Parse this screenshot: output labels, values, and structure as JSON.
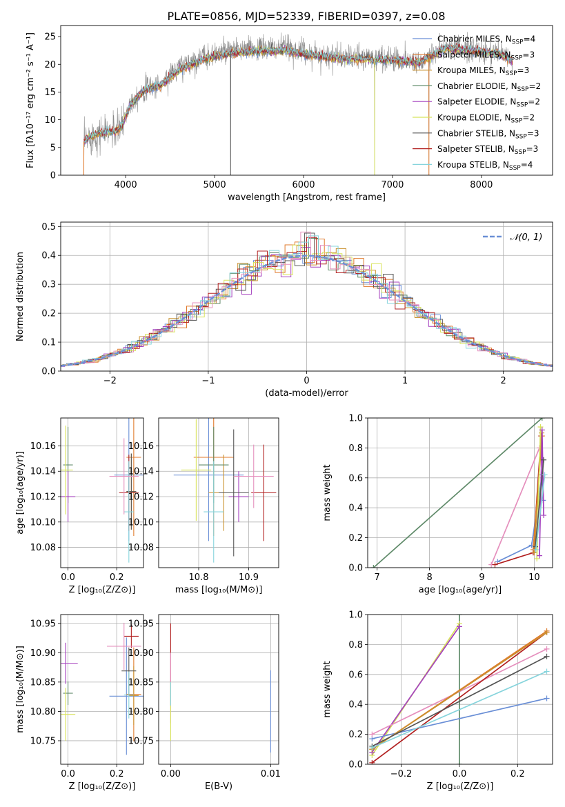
{
  "title": "PLATE=0856, MJD=52339, FIBERID=0397, z=0.08",
  "colors": {
    "chabrier_miles": "#6a8fd6",
    "salpeter_miles": "#e0792b",
    "kroupa_miles": "#c9912e",
    "chabrier_elodie": "#5f8a69",
    "salpeter_elodie": "#a43fbe",
    "kroupa_elodie": "#d8e35a",
    "chabrier_stelib": "#555555",
    "salpeter_stelib": "#b22020",
    "kroupa_stelib": "#86d4dc",
    "pink": "#e58fbd",
    "normal": "#6a8fd6",
    "grid": "#b0b0b0"
  },
  "chart_data": [
    {
      "id": "spectrum",
      "type": "line",
      "xlabel": "wavelength [Angstrom, rest frame]",
      "ylabel": "Flux [fλ10⁻¹⁷ erg cm⁻² s⁻¹ A⁻¹]",
      "xlim": [
        3270,
        8800
      ],
      "ylim": [
        0,
        27
      ],
      "xticks": [
        4000,
        5000,
        6000,
        7000,
        8000
      ],
      "yticks": [
        0,
        5,
        10,
        15,
        20,
        25
      ],
      "grid": false,
      "legend_position": "top-right",
      "series": [
        {
          "name": "Chabrier MILES, N_SSP=4",
          "color_key": "chabrier_miles"
        },
        {
          "name": "Salpeter MILES, N_SSP=3",
          "color_key": "salpeter_miles"
        },
        {
          "name": "Kroupa MILES, N_SSP=3",
          "color_key": "kroupa_miles"
        },
        {
          "name": "Chabrier ELODIE, N_SSP=2",
          "color_key": "chabrier_elodie"
        },
        {
          "name": "Salpeter ELODIE, N_SSP=2",
          "color_key": "salpeter_elodie"
        },
        {
          "name": "Kroupa ELODIE, N_SSP=2",
          "color_key": "kroupa_elodie"
        },
        {
          "name": "Chabrier STELIB, N_SSP=3",
          "color_key": "chabrier_stelib"
        },
        {
          "name": "Salpeter STELIB, N_SSP=3",
          "color_key": "salpeter_stelib"
        },
        {
          "name": "Kroupa STELIB, N_SSP=4",
          "color_key": "kroupa_stelib"
        }
      ],
      "continuum": [
        [
          3530,
          6.0
        ],
        [
          3600,
          7.0
        ],
        [
          3700,
          7.5
        ],
        [
          3800,
          7.8
        ],
        [
          3900,
          8.0
        ],
        [
          3960,
          9.0
        ],
        [
          4050,
          13.0
        ],
        [
          4200,
          15.5
        ],
        [
          4400,
          16.5
        ],
        [
          4600,
          19.5
        ],
        [
          4900,
          21.5
        ],
        [
          5200,
          22.5
        ],
        [
          5500,
          22.8
        ],
        [
          5800,
          23.0
        ],
        [
          6100,
          22.0
        ],
        [
          6400,
          21.3
        ],
        [
          6700,
          21.2
        ],
        [
          7000,
          21.0
        ],
        [
          7300,
          20.5
        ],
        [
          7600,
          23.0
        ],
        [
          7900,
          22.5
        ],
        [
          8200,
          22.0
        ],
        [
          8350,
          20.5
        ]
      ],
      "model_continuum": [
        [
          3530,
          6.0
        ],
        [
          3600,
          7.0
        ],
        [
          3700,
          7.5
        ],
        [
          3800,
          7.8
        ],
        [
          3900,
          8.0
        ],
        [
          3960,
          9.0
        ],
        [
          4050,
          12.6
        ],
        [
          4200,
          15.2
        ],
        [
          4400,
          16.2
        ],
        [
          4600,
          19.0
        ],
        [
          4900,
          21.0
        ],
        [
          5200,
          22.0
        ],
        [
          5500,
          22.4
        ],
        [
          5800,
          22.5
        ],
        [
          6100,
          21.6
        ],
        [
          6400,
          21.0
        ],
        [
          6700,
          20.9
        ],
        [
          7000,
          20.7
        ],
        [
          7300,
          20.3
        ],
        [
          7600,
          22.9
        ],
        [
          7900,
          22.4
        ],
        [
          8200,
          21.9
        ],
        [
          8350,
          20.6
        ]
      ],
      "dropouts": [
        [
          3530,
          0
        ],
        [
          5180,
          0
        ],
        [
          6800,
          0
        ],
        [
          7410,
          0
        ]
      ]
    },
    {
      "id": "residuals",
      "type": "histogram",
      "xlabel": "(data-model)/error",
      "ylabel": "Normed distribution",
      "xlim": [
        -2.5,
        2.5
      ],
      "ylim": [
        0,
        0.515
      ],
      "xticks": [
        -2,
        -1,
        0,
        1,
        2
      ],
      "yticks": [
        0.0,
        0.1,
        0.2,
        0.3,
        0.4,
        0.5
      ],
      "grid": true,
      "bin_width": 0.1,
      "legend_position": "top-right",
      "reference_curve": {
        "name": "𝒩(0, 1)",
        "mean": 0,
        "sigma": 1
      }
    },
    {
      "id": "age_vs_Z",
      "type": "scatter",
      "xlabel": "Z [log₁₀(Z/Z⊙)]",
      "ylabel": "age  [log₁₀(age/yr)]",
      "xlim": [
        -0.03,
        0.31
      ],
      "ylim": [
        10.064,
        10.182
      ],
      "xticks": [
        0.0,
        0.2
      ],
      "yticks": [
        10.08,
        10.1,
        10.12,
        10.14,
        10.16
      ],
      "grid": true,
      "points": [
        {
          "x": 0.25,
          "y": 10.137,
          "xerr": 0.06,
          "yerr": 0.052,
          "color_key": "chabrier_miles"
        },
        {
          "x": 0.27,
          "y": 10.151,
          "xerr": 0.03,
          "yerr": 0.062,
          "color_key": "salpeter_miles"
        },
        {
          "x": 0.26,
          "y": 10.124,
          "xerr": 0.02,
          "yerr": 0.03,
          "color_key": "kroupa_miles"
        },
        {
          "x": 0.0,
          "y": 10.145,
          "xerr": 0.02,
          "yerr": 0.03,
          "color_key": "chabrier_elodie"
        },
        {
          "x": 0.0,
          "y": 10.12,
          "xerr": 0.03,
          "yerr": 0.02,
          "color_key": "salpeter_elodie"
        },
        {
          "x": -0.01,
          "y": 10.141,
          "xerr": 0.03,
          "yerr": 0.035,
          "color_key": "kroupa_elodie"
        },
        {
          "x": 0.26,
          "y": 10.124,
          "xerr": 0.02,
          "yerr": 0.03,
          "color_key": "chabrier_stelib"
        },
        {
          "x": 0.25,
          "y": 10.123,
          "xerr": 0.04,
          "yerr": 0.03,
          "color_key": "salpeter_stelib"
        },
        {
          "x": 0.25,
          "y": 10.108,
          "xerr": 0.02,
          "yerr": 0.04,
          "color_key": "kroupa_stelib"
        },
        {
          "x": 0.23,
          "y": 10.136,
          "xerr": 0.06,
          "yerr": 0.03,
          "color_key": "pink"
        }
      ]
    },
    {
      "id": "age_vs_mass",
      "type": "scatter",
      "xlabel": "mass [log₁₀(M/M⊙)]",
      "ylabel": "",
      "xlim": [
        10.72,
        10.96
      ],
      "ylim": [
        10.064,
        10.182
      ],
      "xticks": [
        10.8,
        10.9
      ],
      "xtick_labels": [
        "10.8",
        "10.9"
      ],
      "yticks": [
        10.08,
        10.1,
        10.12,
        10.14,
        10.16
      ],
      "grid": true,
      "points": [
        {
          "x": 10.82,
          "y": 10.137,
          "xerr": 0.07,
          "yerr": 0.052,
          "color_key": "chabrier_miles"
        },
        {
          "x": 10.83,
          "y": 10.151,
          "xerr": 0.04,
          "yerr": 0.062,
          "color_key": "salpeter_miles"
        },
        {
          "x": 10.85,
          "y": 10.123,
          "xerr": 0.03,
          "yerr": 0.03,
          "color_key": "kroupa_miles"
        },
        {
          "x": 10.83,
          "y": 10.145,
          "xerr": 0.03,
          "yerr": 0.03,
          "color_key": "chabrier_elodie"
        },
        {
          "x": 10.88,
          "y": 10.12,
          "xerr": 0.02,
          "yerr": 0.02,
          "color_key": "salpeter_elodie"
        },
        {
          "x": 10.795,
          "y": 10.141,
          "xerr": 0.03,
          "yerr": 0.04,
          "color_key": "kroupa_elodie"
        },
        {
          "x": 10.87,
          "y": 10.123,
          "xerr": 0.03,
          "yerr": 0.05,
          "color_key": "chabrier_stelib"
        },
        {
          "x": 10.93,
          "y": 10.123,
          "xerr": 0.025,
          "yerr": 0.038,
          "color_key": "salpeter_stelib"
        },
        {
          "x": 10.83,
          "y": 10.108,
          "xerr": 0.02,
          "yerr": 0.04,
          "color_key": "kroupa_stelib"
        },
        {
          "x": 10.91,
          "y": 10.136,
          "xerr": 0.04,
          "yerr": 0.025,
          "color_key": "pink"
        }
      ]
    },
    {
      "id": "weight_vs_age",
      "type": "line",
      "xlabel": "age  [log₁₀(age/yr)]",
      "ylabel": "mass weight",
      "xlim": [
        6.82,
        10.35
      ],
      "ylim": [
        0,
        1.0
      ],
      "xticks": [
        7,
        8,
        9,
        10
      ],
      "yticks": [
        0.0,
        0.2,
        0.4,
        0.6,
        0.8,
        1.0
      ],
      "grid": true,
      "series": [
        {
          "color_key": "chabrier_elodie",
          "points": [
            [
              6.93,
              0.0
            ],
            [
              10.15,
              1.0
            ]
          ]
        },
        {
          "color_key": "pink",
          "points": [
            [
              9.18,
              0.02
            ],
            [
              10.1,
              0.8
            ]
          ]
        },
        {
          "color_key": "chabrier_miles",
          "points": [
            [
              9.3,
              0.04
            ],
            [
              9.95,
              0.15
            ],
            [
              10.15,
              0.62
            ],
            [
              10.17,
              0.45
            ]
          ]
        },
        {
          "color_key": "salpeter_stelib",
          "points": [
            [
              9.25,
              0.02
            ],
            [
              9.98,
              0.1
            ],
            [
              10.13,
              0.88
            ]
          ]
        },
        {
          "color_key": "salpeter_miles",
          "points": [
            [
              9.98,
              0.12
            ],
            [
              10.15,
              0.88
            ]
          ]
        },
        {
          "color_key": "kroupa_miles",
          "points": [
            [
              10.0,
              0.1
            ],
            [
              10.14,
              0.9
            ]
          ]
        },
        {
          "color_key": "kroupa_elodie",
          "points": [
            [
              10.05,
              0.06
            ],
            [
              10.12,
              0.94
            ]
          ]
        },
        {
          "color_key": "salpeter_elodie",
          "points": [
            [
              10.1,
              0.08
            ],
            [
              10.15,
              0.92
            ],
            [
              10.18,
              0.35
            ]
          ]
        },
        {
          "color_key": "chabrier_stelib",
          "points": [
            [
              10.02,
              0.14
            ],
            [
              10.18,
              0.72
            ]
          ]
        },
        {
          "color_key": "kroupa_stelib",
          "points": [
            [
              10.03,
              0.12
            ],
            [
              10.2,
              0.62
            ]
          ]
        }
      ]
    },
    {
      "id": "mass_vs_Z",
      "type": "scatter",
      "xlabel": "Z [log₁₀(Z/Z⊙)]",
      "ylabel": "mass [log₁₀(M/M⊙)]",
      "xlim": [
        -0.03,
        0.31
      ],
      "ylim": [
        10.71,
        10.965
      ],
      "xticks": [
        0.0,
        0.2
      ],
      "yticks": [
        10.75,
        10.8,
        10.85,
        10.9,
        10.95
      ],
      "grid": true,
      "points": [
        {
          "x": 0.24,
          "y": 10.826,
          "xerr": 0.07,
          "yerr": 0.1,
          "color_key": "chabrier_miles"
        },
        {
          "x": 0.27,
          "y": 10.829,
          "xerr": 0.03,
          "yerr": 0.08,
          "color_key": "salpeter_miles"
        },
        {
          "x": 0.27,
          "y": 10.827,
          "xerr": 0.02,
          "yerr": 0.05,
          "color_key": "kroupa_miles"
        },
        {
          "x": 0.0,
          "y": 10.831,
          "xerr": 0.02,
          "yerr": 0.02,
          "color_key": "chabrier_elodie"
        },
        {
          "x": -0.01,
          "y": 10.882,
          "xerr": 0.05,
          "yerr": 0.035,
          "color_key": "salpeter_elodie"
        },
        {
          "x": -0.01,
          "y": 10.795,
          "xerr": 0.04,
          "yerr": 0.045,
          "color_key": "kroupa_elodie"
        },
        {
          "x": 0.25,
          "y": 10.869,
          "xerr": 0.03,
          "yerr": 0.04,
          "color_key": "chabrier_stelib"
        },
        {
          "x": 0.26,
          "y": 10.928,
          "xerr": 0.03,
          "yerr": 0.02,
          "color_key": "salpeter_stelib"
        },
        {
          "x": 0.25,
          "y": 10.828,
          "xerr": 0.02,
          "yerr": 0.04,
          "color_key": "kroupa_stelib"
        },
        {
          "x": 0.23,
          "y": 10.911,
          "xerr": 0.07,
          "yerr": 0.04,
          "color_key": "pink"
        }
      ]
    },
    {
      "id": "mass_vs_ebv",
      "type": "scatter",
      "xlabel": "E(B-V)",
      "ylabel": "",
      "xlim": [
        -0.0012,
        0.0108
      ],
      "ylim": [
        10.71,
        10.965
      ],
      "xticks": [
        0.0,
        0.01
      ],
      "xtick_labels": [
        "0.00",
        "0.01"
      ],
      "yticks": [
        10.75,
        10.8,
        10.85,
        10.9,
        10.95
      ],
      "grid": true,
      "points": [
        {
          "x": 0.01,
          "y": 10.8,
          "xerr": 0,
          "yerr": 0.07,
          "color_key": "chabrier_miles"
        },
        {
          "x": 0.0,
          "y": 10.88,
          "xerr": 0,
          "yerr": 0.07,
          "color_key": "salpeter_stelib"
        },
        {
          "x": 0.0,
          "y": 10.84,
          "xerr": 0,
          "yerr": 0.06,
          "color_key": "pink"
        },
        {
          "x": 0.0,
          "y": 10.8,
          "xerr": 0,
          "yerr": 0.05,
          "color_key": "kroupa_elodie"
        },
        {
          "x": 0.0,
          "y": 10.83,
          "xerr": 0,
          "yerr": 0.02,
          "color_key": "kroupa_stelib"
        }
      ]
    },
    {
      "id": "weight_vs_Z",
      "type": "line",
      "xlabel": "Z [log₁₀(Z/Z⊙)]",
      "ylabel": "mass weight",
      "xlim": [
        -0.315,
        0.32
      ],
      "ylim": [
        0,
        1.0
      ],
      "xticks": [
        -0.2,
        0.0,
        0.2
      ],
      "yticks": [
        0.0,
        0.2,
        0.4,
        0.6,
        0.8,
        1.0
      ],
      "grid": true,
      "series": [
        {
          "color_key": "chabrier_elodie",
          "points": [
            [
              0.0,
              0.0
            ],
            [
              0.0,
              1.0
            ]
          ]
        },
        {
          "color_key": "kroupa_elodie",
          "points": [
            [
              -0.3,
              0.06
            ],
            [
              0.0,
              0.94
            ]
          ]
        },
        {
          "color_key": "salpeter_elodie",
          "points": [
            [
              -0.3,
              0.08
            ],
            [
              0.0,
              0.92
            ]
          ]
        },
        {
          "color_key": "chabrier_miles",
          "points": [
            [
              -0.3,
              0.17
            ],
            [
              0.3,
              0.44
            ]
          ]
        },
        {
          "color_key": "pink",
          "points": [
            [
              -0.3,
              0.2
            ],
            [
              0.3,
              0.77
            ]
          ]
        },
        {
          "color_key": "salpeter_stelib",
          "points": [
            [
              -0.3,
              0.01
            ],
            [
              0.3,
              0.88
            ]
          ]
        },
        {
          "color_key": "salpeter_miles",
          "points": [
            [
              -0.3,
              0.1
            ],
            [
              0.3,
              0.89
            ]
          ]
        },
        {
          "color_key": "kroupa_miles",
          "points": [
            [
              -0.3,
              0.1
            ],
            [
              0.3,
              0.88
            ]
          ]
        },
        {
          "color_key": "chabrier_stelib",
          "points": [
            [
              -0.3,
              0.12
            ],
            [
              0.3,
              0.72
            ]
          ]
        },
        {
          "color_key": "kroupa_stelib",
          "points": [
            [
              -0.3,
              0.11
            ],
            [
              0.3,
              0.62
            ]
          ]
        }
      ]
    }
  ]
}
